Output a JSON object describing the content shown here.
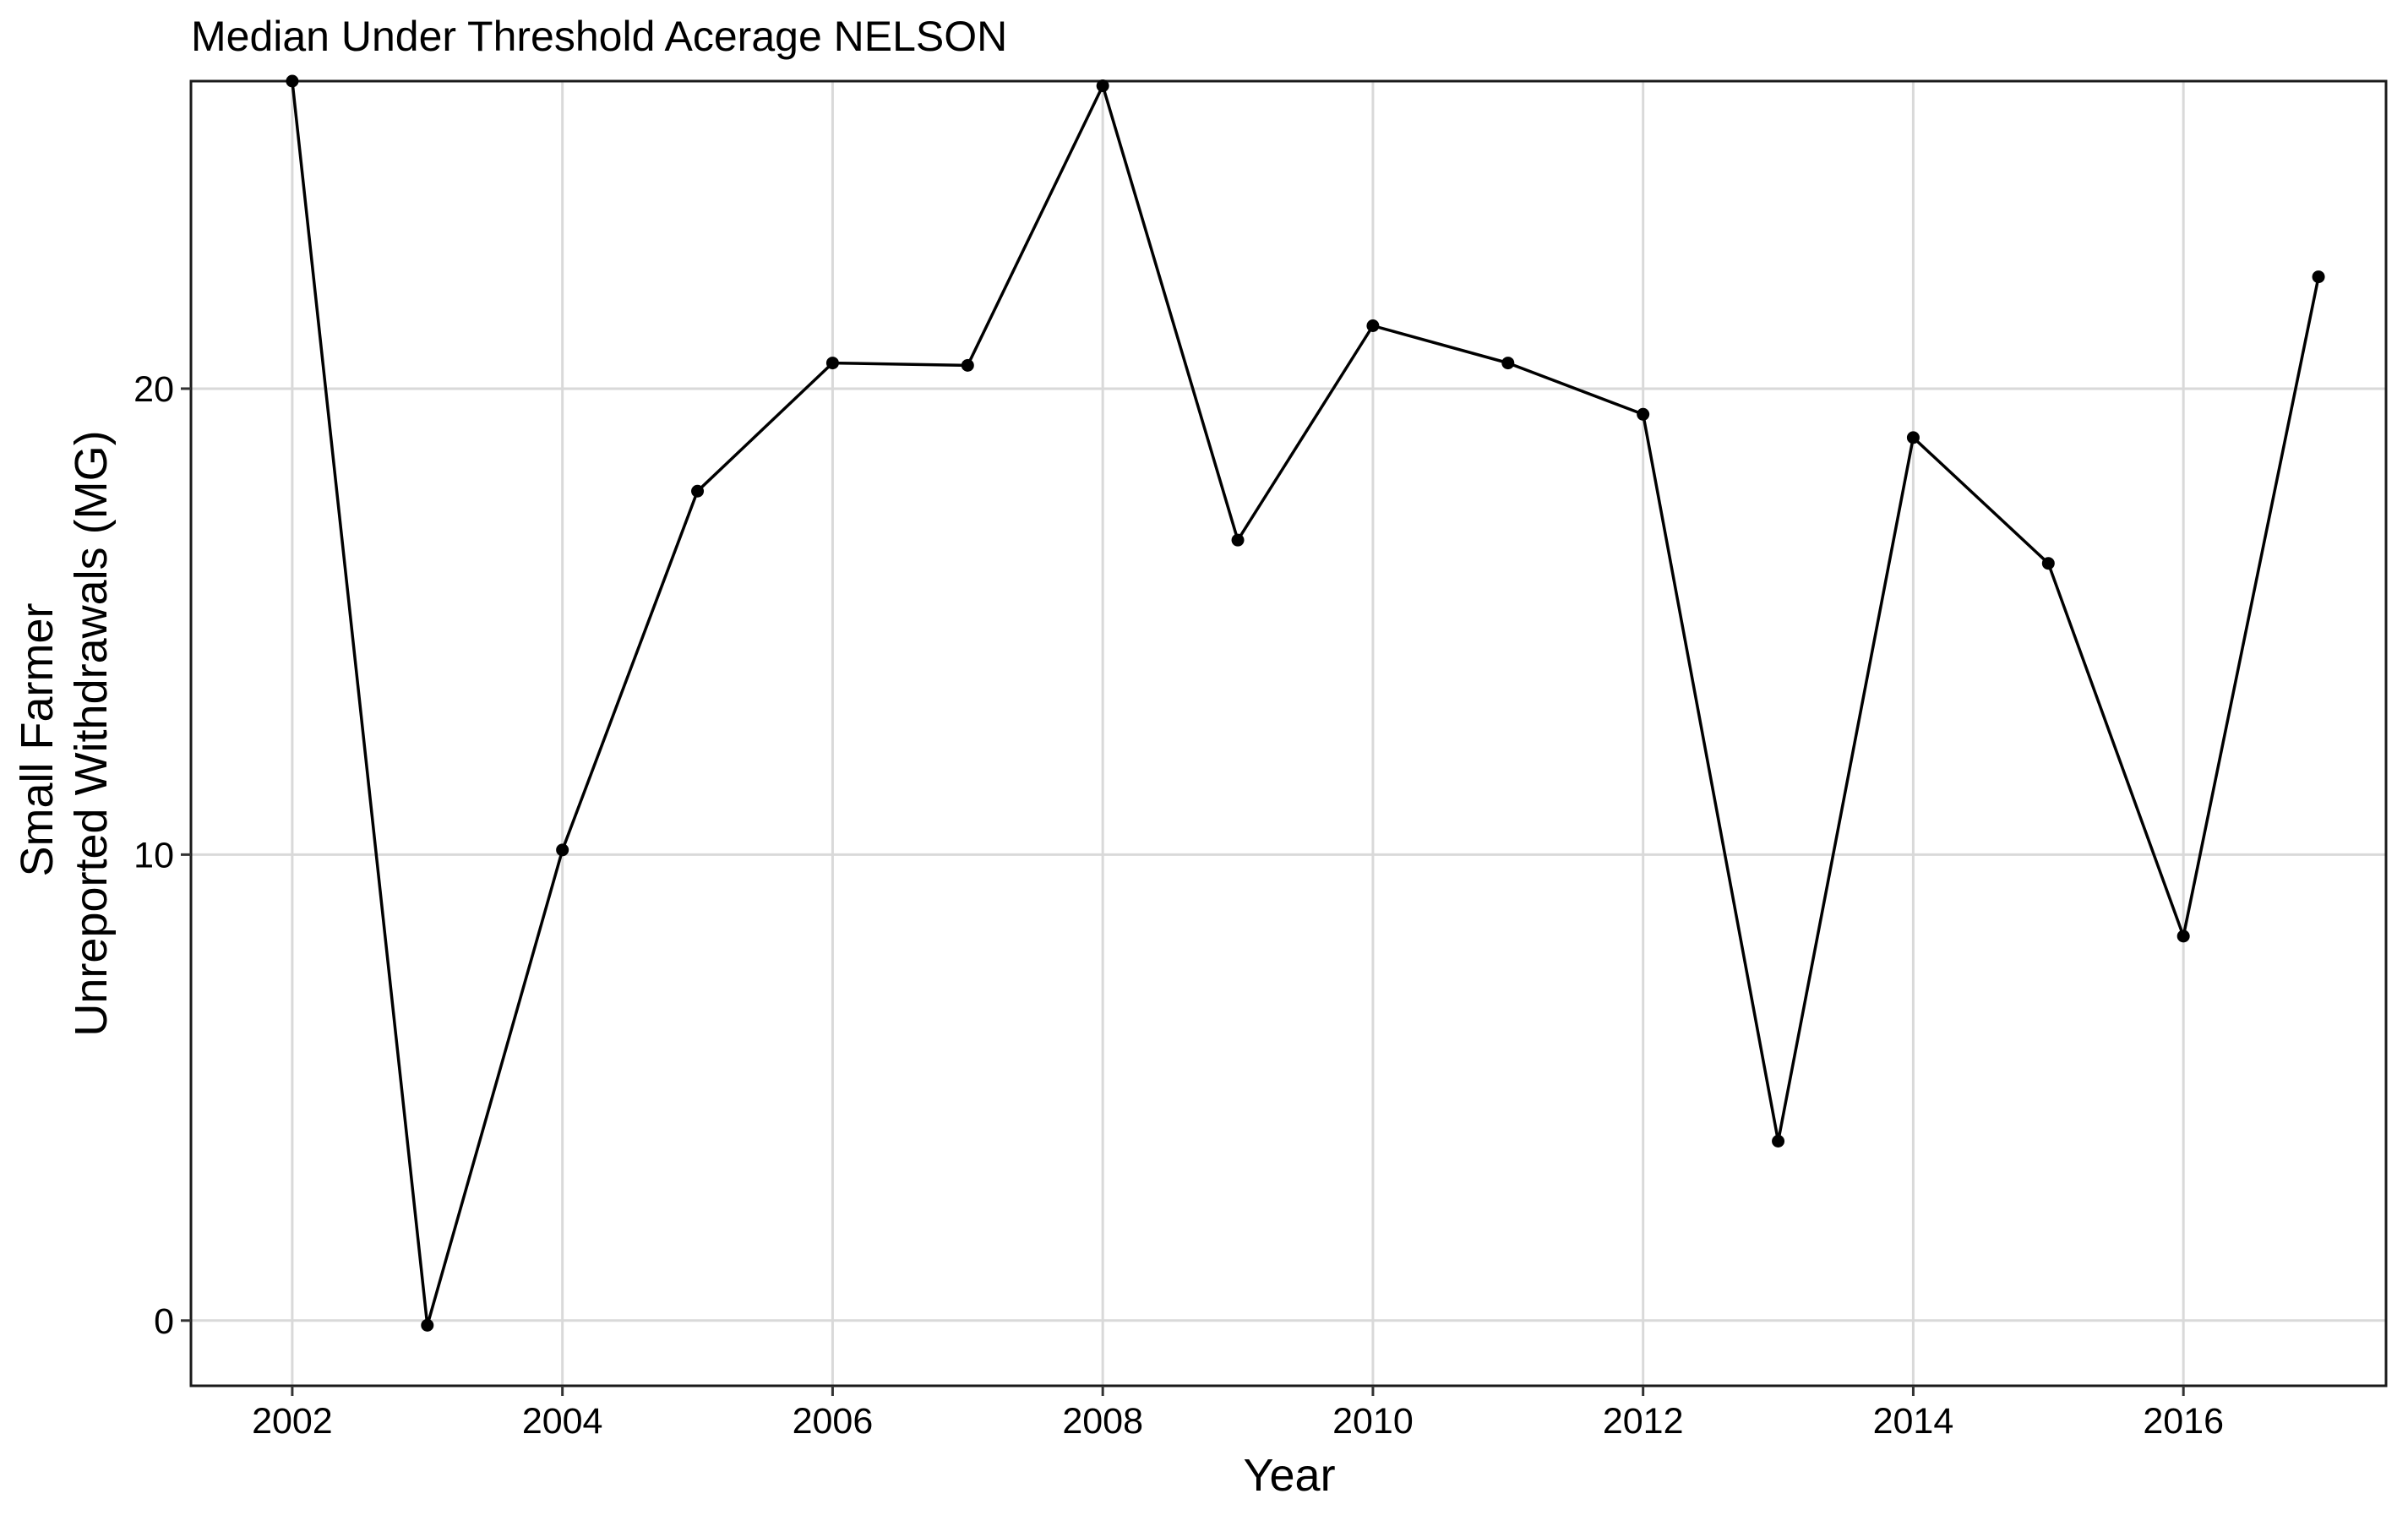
{
  "chart_data": {
    "type": "line",
    "title": "Median Under Threshold Acerage NELSON",
    "xlabel": "Year",
    "ylabel_lines": [
      "Small Farmer",
      "Unreported Withdrawals (MG)"
    ],
    "x_ticks": [
      2002,
      2004,
      2006,
      2008,
      2010,
      2012,
      2014,
      2016
    ],
    "y_ticks": [
      0,
      10,
      20
    ],
    "xlim": [
      2001.25,
      2017.5
    ],
    "ylim": [
      -1.4,
      26.6
    ],
    "grid": true,
    "series": [
      {
        "x": [
          2002,
          2003,
          2004,
          2005,
          2006,
          2007,
          2008,
          2009,
          2010,
          2011,
          2012,
          2013,
          2014,
          2015,
          2016,
          2017
        ],
        "values": [
          26.6,
          -0.1,
          10.1,
          17.8,
          20.55,
          20.5,
          26.5,
          16.75,
          21.35,
          20.55,
          19.45,
          3.85,
          18.95,
          16.25,
          8.25,
          22.4
        ]
      }
    ]
  }
}
